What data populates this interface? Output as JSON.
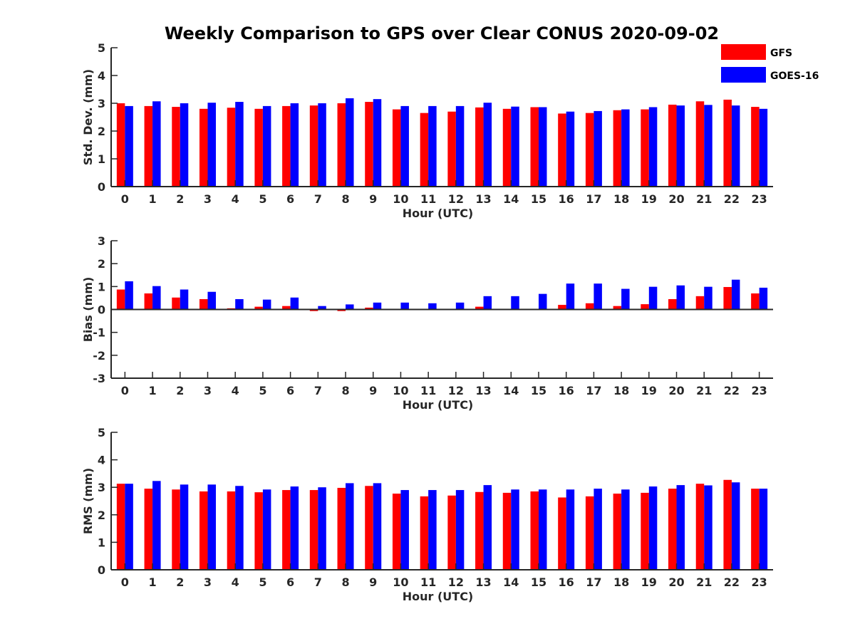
{
  "chart_data": [
    {
      "type": "bar",
      "title": "Weekly Comparison to GPS over Clear CONUS 2020-09-02",
      "xlabel": "Hour (UTC)",
      "ylabel": "Std. Dev. (mm)",
      "ylim": [
        0,
        5
      ],
      "yticks": [
        0,
        1,
        2,
        3,
        4,
        5
      ],
      "categories": [
        "0",
        "1",
        "2",
        "3",
        "4",
        "5",
        "6",
        "7",
        "8",
        "9",
        "10",
        "11",
        "12",
        "13",
        "14",
        "15",
        "16",
        "17",
        "18",
        "19",
        "20",
        "21",
        "22",
        "23"
      ],
      "series": [
        {
          "name": "GFS",
          "color": "#ff0000",
          "values": [
            3.0,
            2.9,
            2.87,
            2.8,
            2.84,
            2.8,
            2.9,
            2.92,
            3.0,
            3.05,
            2.78,
            2.65,
            2.7,
            2.85,
            2.8,
            2.86,
            2.63,
            2.65,
            2.75,
            2.78,
            2.95,
            3.07,
            3.13,
            2.87
          ]
        },
        {
          "name": "GOES-16",
          "color": "#0000ff",
          "values": [
            2.9,
            3.07,
            3.0,
            3.02,
            3.05,
            2.9,
            3.0,
            3.0,
            3.18,
            3.15,
            2.9,
            2.9,
            2.9,
            3.02,
            2.88,
            2.86,
            2.7,
            2.72,
            2.78,
            2.86,
            2.92,
            2.94,
            2.92,
            2.8
          ]
        }
      ]
    },
    {
      "type": "bar",
      "title": "",
      "xlabel": "Hour (UTC)",
      "ylabel": "Bias (mm)",
      "ylim": [
        -3,
        3
      ],
      "yticks": [
        -3,
        -2,
        -1,
        0,
        1,
        2,
        3
      ],
      "categories": [
        "0",
        "1",
        "2",
        "3",
        "4",
        "5",
        "6",
        "7",
        "8",
        "9",
        "10",
        "11",
        "12",
        "13",
        "14",
        "15",
        "16",
        "17",
        "18",
        "19",
        "20",
        "21",
        "22",
        "23"
      ],
      "series": [
        {
          "name": "GFS",
          "color": "#ff0000",
          "values": [
            0.87,
            0.7,
            0.52,
            0.45,
            0.05,
            0.12,
            0.15,
            -0.07,
            -0.07,
            0.08,
            0.03,
            0.0,
            -0.02,
            0.12,
            -0.02,
            -0.03,
            0.2,
            0.27,
            0.15,
            0.23,
            0.45,
            0.58,
            0.98,
            0.7
          ]
        },
        {
          "name": "GOES-16",
          "color": "#0000ff",
          "values": [
            1.23,
            1.02,
            0.87,
            0.77,
            0.45,
            0.43,
            0.52,
            0.15,
            0.22,
            0.3,
            0.3,
            0.27,
            0.3,
            0.58,
            0.58,
            0.68,
            1.13,
            1.13,
            0.9,
            0.99,
            1.05,
            0.99,
            1.3,
            0.95
          ]
        }
      ]
    },
    {
      "type": "bar",
      "title": "",
      "xlabel": "Hour (UTC)",
      "ylabel": "RMS (mm)",
      "ylim": [
        0,
        5
      ],
      "yticks": [
        0,
        1,
        2,
        3,
        4,
        5
      ],
      "categories": [
        "0",
        "1",
        "2",
        "3",
        "4",
        "5",
        "6",
        "7",
        "8",
        "9",
        "10",
        "11",
        "12",
        "13",
        "14",
        "15",
        "16",
        "17",
        "18",
        "19",
        "20",
        "21",
        "22",
        "23"
      ],
      "series": [
        {
          "name": "GFS",
          "color": "#ff0000",
          "values": [
            3.13,
            2.95,
            2.92,
            2.85,
            2.85,
            2.82,
            2.9,
            2.9,
            2.98,
            3.05,
            2.77,
            2.67,
            2.7,
            2.83,
            2.8,
            2.85,
            2.63,
            2.67,
            2.77,
            2.8,
            2.95,
            3.13,
            3.27,
            2.95
          ]
        },
        {
          "name": "GOES-16",
          "color": "#0000ff",
          "values": [
            3.13,
            3.23,
            3.1,
            3.1,
            3.05,
            2.92,
            3.03,
            3.0,
            3.15,
            3.15,
            2.9,
            2.9,
            2.9,
            3.08,
            2.92,
            2.92,
            2.92,
            2.95,
            2.92,
            3.03,
            3.08,
            3.07,
            3.18,
            2.95
          ]
        }
      ]
    }
  ],
  "legend": {
    "placement": "top-right",
    "items": [
      {
        "label": "GFS",
        "color": "#ff0000"
      },
      {
        "label": "GOES-16",
        "color": "#0000ff"
      }
    ]
  }
}
